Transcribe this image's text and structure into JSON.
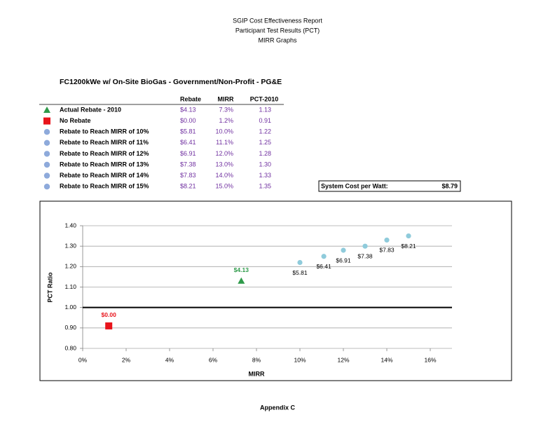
{
  "header": {
    "lines": [
      "SGIP Cost Effectiveness Report",
      "Participant Test Results (PCT)",
      "MIRR Graphs"
    ]
  },
  "subtitle": "FC1200kWe w/ On-Site BioGas - Government/Non-Profit - PG&E",
  "table": {
    "columns": [
      "Rebate",
      "MIRR",
      "PCT-2010"
    ],
    "rows": [
      {
        "marker": "triangle",
        "color": "#2e9a4a",
        "label": "Actual Rebate - 2010",
        "cells": [
          "$4.13",
          "7.3%",
          "1.13"
        ]
      },
      {
        "marker": "square",
        "color": "#e8141b",
        "label": "No Rebate",
        "cells": [
          "$0.00",
          "1.2%",
          "0.91"
        ]
      },
      {
        "marker": "circle",
        "color": "#8eaadb",
        "label": "Rebate to Reach MIRR of 10%",
        "cells": [
          "$5.81",
          "10.0%",
          "1.22"
        ]
      },
      {
        "marker": "circle",
        "color": "#8eaadb",
        "label": "Rebate to Reach MIRR of 11%",
        "cells": [
          "$6.41",
          "11.1%",
          "1.25"
        ]
      },
      {
        "marker": "circle",
        "color": "#8eaadb",
        "label": "Rebate to Reach MIRR of 12%",
        "cells": [
          "$6.91",
          "12.0%",
          "1.28"
        ]
      },
      {
        "marker": "circle",
        "color": "#8eaadb",
        "label": "Rebate to Reach MIRR of 13%",
        "cells": [
          "$7.38",
          "13.0%",
          "1.30"
        ]
      },
      {
        "marker": "circle",
        "color": "#8eaadb",
        "label": "Rebate to Reach MIRR of 14%",
        "cells": [
          "$7.83",
          "14.0%",
          "1.33"
        ]
      },
      {
        "marker": "circle",
        "color": "#8eaadb",
        "label": "Rebate to Reach MIRR of 15%",
        "cells": [
          "$8.21",
          "15.0%",
          "1.35"
        ]
      }
    ]
  },
  "system_cost": {
    "label": "System Cost per Watt:",
    "value": "$8.79"
  },
  "chart_data": {
    "type": "scatter",
    "xlabel": "MIRR",
    "ylabel": "PCT Ratio",
    "xlim": [
      0,
      17
    ],
    "xticks": [
      {
        "value": 0,
        "label": "0%"
      },
      {
        "value": 2,
        "label": "2%"
      },
      {
        "value": 4,
        "label": "4%"
      },
      {
        "value": 6,
        "label": "6%"
      },
      {
        "value": 8,
        "label": "8%"
      },
      {
        "value": 10,
        "label": "10%"
      },
      {
        "value": 12,
        "label": "12%"
      },
      {
        "value": 14,
        "label": "14%"
      },
      {
        "value": 16,
        "label": "16%"
      }
    ],
    "ylim": [
      0.8,
      1.4
    ],
    "yticks": [
      {
        "value": 0.8,
        "label": "0.80"
      },
      {
        "value": 0.9,
        "label": "0.90"
      },
      {
        "value": 1,
        "label": "1.00"
      },
      {
        "value": 1.1,
        "label": "1.10"
      },
      {
        "value": 1.2,
        "label": "1.20"
      },
      {
        "value": 1.3,
        "label": "1.30"
      },
      {
        "value": 1.4,
        "label": "1.40"
      }
    ],
    "grid": true,
    "reference_y": 1,
    "series": [
      {
        "marker": "triangle",
        "color": "#2e9a4a",
        "label_color": "#2e9a4a",
        "label_position": "above",
        "x": [
          7.3
        ],
        "values": [
          1.13
        ],
        "point_labels": [
          "$4.13"
        ]
      },
      {
        "marker": "square",
        "color": "#e8141b",
        "label_color": "#e8141b",
        "label_position": "above",
        "x": [
          1.2
        ],
        "values": [
          0.91
        ],
        "point_labels": [
          "$0.00"
        ]
      },
      {
        "marker": "circle",
        "color": "#8fcbdb",
        "label_color": "#000000",
        "label_position": "below",
        "x": [
          10,
          11.1,
          12,
          13,
          14,
          15
        ],
        "values": [
          1.22,
          1.25,
          1.28,
          1.3,
          1.33,
          1.35
        ],
        "point_labels": [
          "$5.81",
          "$6.41",
          "$6.91",
          "$7.38",
          "$7.83",
          "$8.21"
        ]
      }
    ]
  },
  "footer": "Appendix C"
}
